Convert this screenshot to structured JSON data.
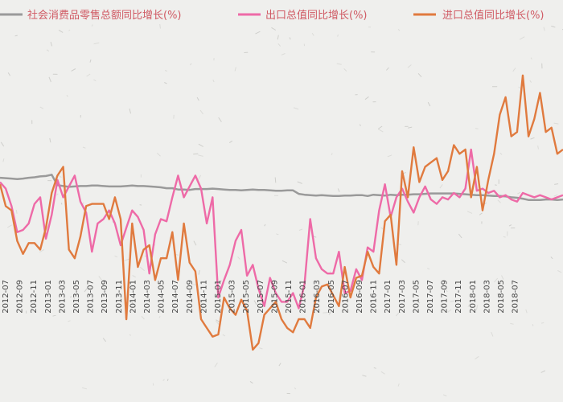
{
  "chart_data": {
    "type": "line",
    "title": "",
    "xlabel": "",
    "ylabel": "",
    "x_tick_labels": [
      "2012-07",
      "2012-09",
      "2012-11",
      "2013-01",
      "2013-03",
      "2013-05",
      "2013-07",
      "2013-09",
      "2013-11",
      "2014-01",
      "2014-03",
      "2014-05",
      "2014-07",
      "2014-09",
      "2014-11",
      "2015-01",
      "2015-03",
      "2015-05",
      "2015-07",
      "2015-09",
      "2015-11",
      "2016-01",
      "2016-03",
      "2016-05",
      "2016-07",
      "2016-09",
      "2016-11",
      "2017-01",
      "2017-03",
      "2017-05",
      "2017-07",
      "2017-09",
      "2017-11",
      "2018-01",
      "2018-03",
      "2018-05",
      "2018-07"
    ],
    "grid": false,
    "legend_position": "top",
    "series": [
      {
        "name": "社会消费品零售总额同比增长(%)",
        "color": "#9a9a9a",
        "values": [
          14.5,
          14.4,
          14.3,
          14.2,
          14.3,
          14.5,
          14.6,
          14.8,
          14.9,
          15.2,
          12.8,
          12.6,
          12.4,
          12.5,
          12.6,
          12.6,
          12.7,
          12.7,
          12.6,
          12.5,
          12.5,
          12.5,
          12.6,
          12.7,
          12.6,
          12.6,
          12.5,
          12.4,
          12.3,
          12.1,
          12.1,
          11.8,
          11.8,
          11.7,
          11.9,
          11.9,
          11.9,
          12.0,
          11.9,
          11.8,
          11.7,
          11.7,
          11.6,
          11.7,
          11.8,
          11.7,
          11.7,
          11.6,
          11.5,
          11.5,
          11.6,
          11.6,
          10.8,
          10.6,
          10.5,
          10.4,
          10.5,
          10.4,
          10.3,
          10.3,
          10.4,
          10.4,
          10.5,
          10.5,
          10.3,
          10.6,
          10.5,
          10.4,
          10.6,
          10.5,
          10.6,
          10.6,
          10.7,
          10.7,
          10.8,
          10.9,
          10.9,
          10.9,
          10.9,
          10.9,
          10.8,
          10.7,
          10.6,
          10.5,
          10.5,
          10.4,
          10.3,
          10.3,
          10.2,
          10.0,
          9.9,
          9.7,
          9.4,
          9.4,
          9.4,
          9.5,
          9.5,
          9.4,
          9.5
        ]
      },
      {
        "name": "出口总值同比增长(%)",
        "color": "#ee6aa7",
        "values": [
          13.5,
          12.0,
          8.0,
          2.0,
          2.5,
          4.0,
          8.5,
          10.0,
          0.5,
          6.0,
          14.0,
          10.0,
          12.5,
          15.0,
          9.0,
          6.5,
          -2.5,
          4.0,
          5.0,
          7.0,
          4.0,
          -1.0,
          3.0,
          7.0,
          5.5,
          2.5,
          -7.5,
          1.5,
          5.0,
          4.5,
          10.0,
          15.0,
          10.0,
          12.5,
          15.0,
          12.0,
          4.0,
          10.0,
          -13.0,
          -9.0,
          -5.5,
          0.0,
          2.5,
          -8.0,
          -5.5,
          -11.0,
          -15.0,
          -8.5,
          -12.0,
          -14.0,
          -14.0,
          -12.0,
          -15.5,
          -10.0,
          5.0,
          -4.0,
          -6.5,
          -7.5,
          -7.5,
          -2.5,
          -12.0,
          -11.5,
          -6.5,
          -9.0,
          -1.5,
          -2.5,
          7.0,
          13.0,
          5.5,
          10.0,
          12.0,
          9.0,
          6.5,
          10.0,
          12.5,
          9.5,
          8.5,
          10.0,
          9.5,
          11.0,
          10.0,
          12.0,
          21.0,
          11.5,
          12.0,
          11.0,
          11.5,
          10.0,
          10.5,
          9.5,
          9.0,
          11.0,
          10.5,
          10.0,
          10.5,
          10.0,
          9.5,
          10.0,
          10.5
        ]
      },
      {
        "name": "进口总值同比增长(%)",
        "color": "#e07a3e",
        "values": [
          13.0,
          8.0,
          7.0,
          0.0,
          -3.0,
          -0.5,
          -0.5,
          -2.0,
          3.0,
          11.0,
          15.0,
          17.0,
          -2.0,
          -4.0,
          1.0,
          8.0,
          8.5,
          8.5,
          8.5,
          5.0,
          10.0,
          5.0,
          -18.0,
          4.0,
          -6.0,
          -2.0,
          -1.0,
          -9.0,
          -4.0,
          -4.0,
          2.0,
          -9.0,
          4.0,
          -5.0,
          -7.0,
          -18.0,
          -20.0,
          -22.0,
          -21.5,
          -13.0,
          -15.5,
          -17.0,
          -13.5,
          -16.0,
          -25.0,
          -23.5,
          -17.0,
          -15.5,
          -14.0,
          -18.0,
          -20.0,
          -21.0,
          -18.0,
          -18.0,
          -20.0,
          -13.0,
          -10.5,
          -10.0,
          -12.5,
          -15.0,
          -6.0,
          -13.0,
          -8.5,
          -8.0,
          -2.5,
          -6.0,
          -7.5,
          4.5,
          6.0,
          -5.5,
          16.0,
          10.0,
          21.5,
          13.5,
          17.0,
          18.0,
          19.0,
          14.0,
          16.0,
          22.0,
          20.0,
          21.0,
          10.0,
          17.0,
          7.0,
          14.0,
          20.0,
          29.0,
          33.0,
          24.0,
          25.0,
          38.0,
          24.0,
          28.0,
          34.0,
          25.0,
          26.0,
          20.0,
          21.0
        ]
      }
    ]
  }
}
